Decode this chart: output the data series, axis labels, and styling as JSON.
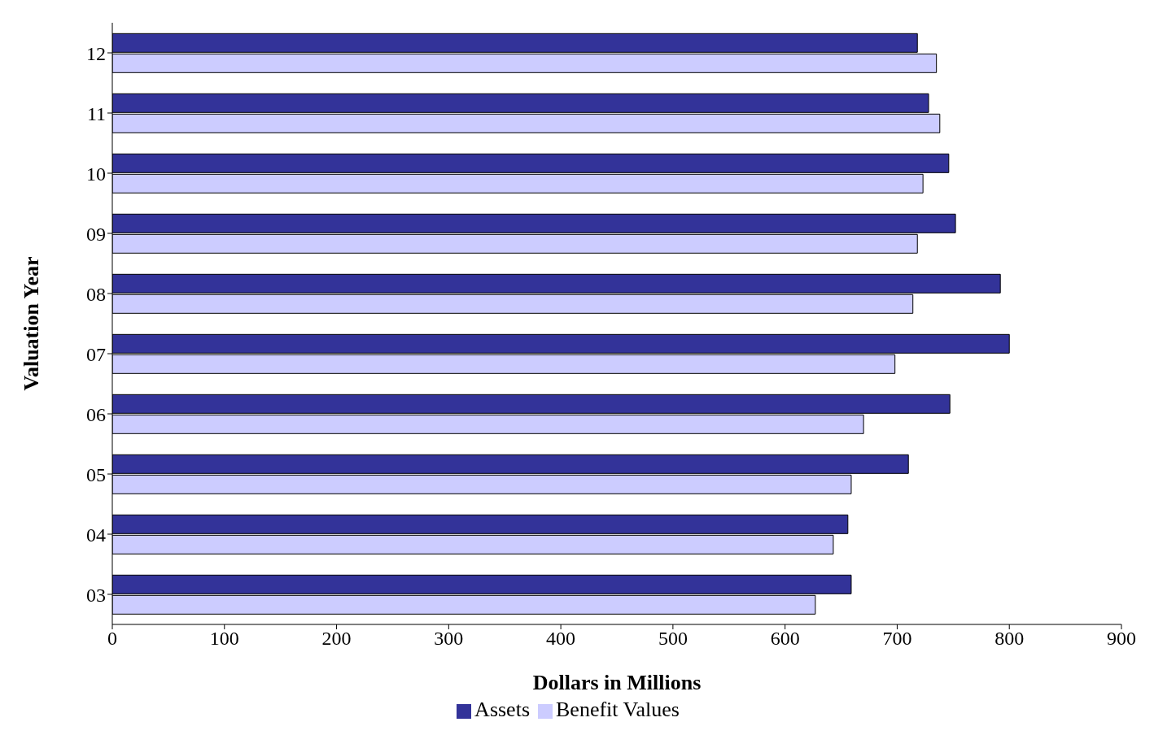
{
  "chart_data": {
    "type": "bar",
    "orientation": "horizontal",
    "xlabel": "Dollars in Millions",
    "ylabel": "Valuation Year",
    "categories": [
      "12",
      "11",
      "10",
      "09",
      "08",
      "07",
      "06",
      "05",
      "04",
      "03"
    ],
    "series": [
      {
        "name": "Assets",
        "color": "#333399",
        "values": [
          718,
          728,
          746,
          752,
          792,
          800,
          747,
          710,
          656,
          659
        ]
      },
      {
        "name": "Benefit Values",
        "color": "#ccccff",
        "values": [
          735,
          738,
          723,
          718,
          714,
          698,
          670,
          659,
          643,
          627
        ]
      }
    ],
    "xlim": [
      0,
      900
    ],
    "xticks": [
      0,
      100,
      200,
      300,
      400,
      500,
      600,
      700,
      800,
      900
    ],
    "grid": false,
    "legend": "bottom"
  }
}
